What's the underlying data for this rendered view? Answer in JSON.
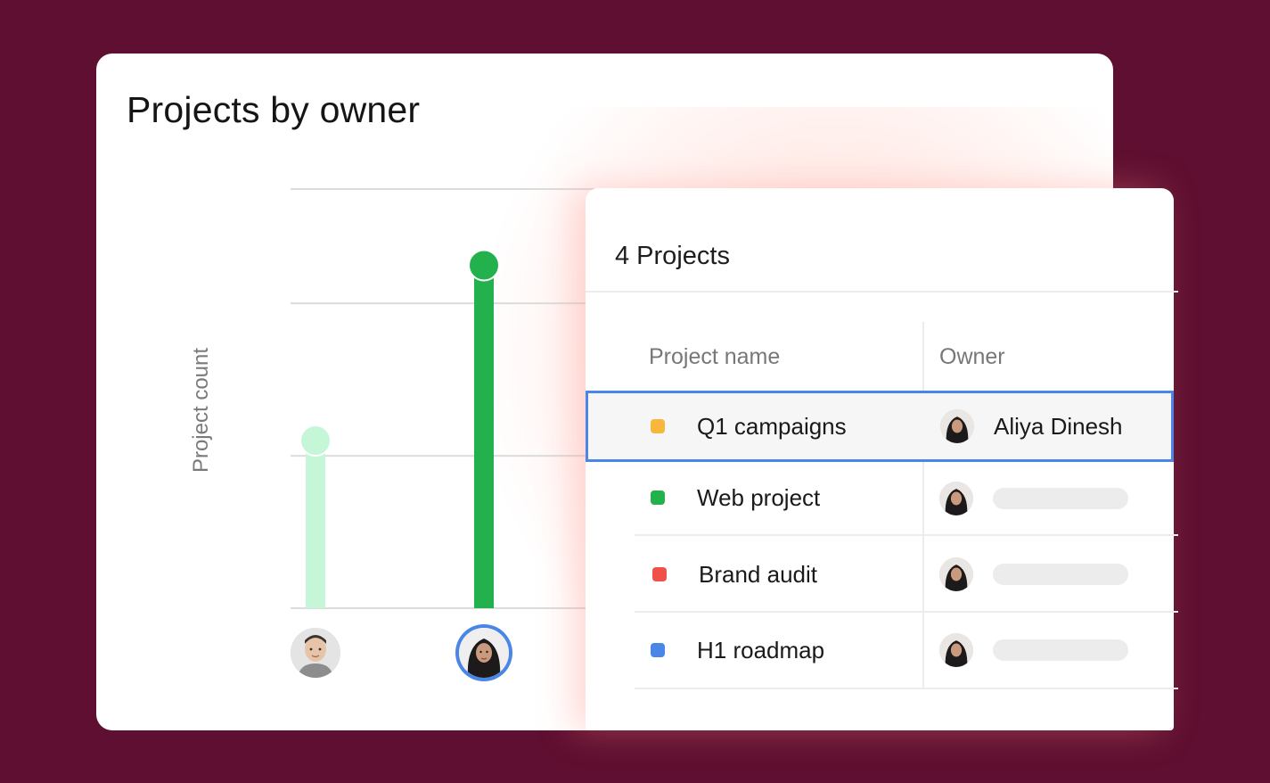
{
  "card": {
    "title": "Projects by owner"
  },
  "chart_data": {
    "type": "bar",
    "title": "Projects by owner",
    "ylabel": "Project count",
    "xlabel": "",
    "categories": [
      "owner-man",
      "owner-aliya"
    ],
    "values": [
      2.2,
      4.5
    ],
    "ylim": [
      0,
      5.5
    ],
    "gridlines": [
      0,
      1,
      2,
      3,
      4,
      5
    ],
    "grid": true,
    "colors": [
      "#c6f6d8",
      "#22b14c"
    ],
    "highlighted_index": 1
  },
  "panel": {
    "title": "4 Projects",
    "columns": {
      "project_name": "Project name",
      "owner": "Owner"
    },
    "rows": [
      {
        "name": "Q1 campaigns",
        "color": "#f6b73c",
        "owner": "Aliya Dinesh",
        "selected": true
      },
      {
        "name": "Web project",
        "color": "#22b14c",
        "owner": "",
        "selected": false
      },
      {
        "name": "Brand audit",
        "color": "#f0504a",
        "owner": "",
        "selected": false
      },
      {
        "name": "H1 roadmap",
        "color": "#4a86e8",
        "owner": "",
        "selected": false
      }
    ]
  },
  "colors": {
    "background": "#5f0f31",
    "selection": "#4a86e8"
  },
  "icons": {
    "avatar_man": "avatar-man-icon",
    "avatar_woman": "avatar-aliya-icon"
  }
}
